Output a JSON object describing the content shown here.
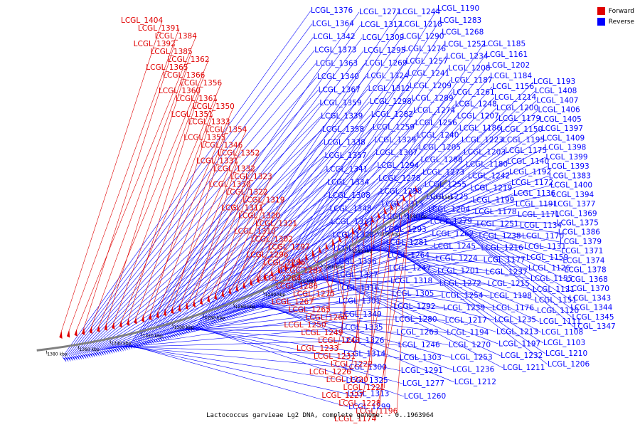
{
  "colors": {
    "forward": "#e00000",
    "reverse": "#0000ff",
    "backbone": "#808080"
  },
  "legend": [
    {
      "name": "Forward",
      "color": "#e00000"
    },
    {
      "name": "Reverse",
      "color": "#0000ff"
    }
  ],
  "caption": "Lactococcus garvieae Lg2 DNA, complete genome. - 0..1963964",
  "ticks": [
    "1380 kbp",
    "1360 kbp",
    "1340 kbp",
    "1320 kbp",
    "1300 kbp",
    "1280 kbp",
    "1260 kbp",
    "1240 kbp",
    "1220 kbp",
    "1200 kbp",
    "1180 kbp",
    "1160 kbp",
    "1140 kbp",
    "1120 kbp"
  ],
  "reverse_labels": [
    "LCGL_1376",
    "LCGL_1364",
    "LCGL_1342",
    "LCGL_1373",
    "LCGL_1363",
    "LCGL_1340",
    "LCGL_1367",
    "LCGL_1359",
    "LCGL_1339",
    "LCGL_1358",
    "LCGL_1338",
    "LCGL_1357",
    "LCGL_1341",
    "LCGL_1334",
    "LCGL_1308",
    "LCGL_1348",
    "LCGL_1337",
    "LCGL_1328",
    "LCGL_1304",
    "LCGL_1336",
    "LCGL_1327",
    "LCGL_1316",
    "LCGL_1301",
    "LCGL_1349",
    "LCGL_1335",
    "LCGL_1326",
    "LCGL_1314",
    "LCGL_1300",
    "LCGL_1325",
    "LCGL_1313",
    "LCGL_1299",
    "LCGL_1271",
    "LCGL_1317",
    "LCGL_1309",
    "LCGL_1295",
    "LCGL_1269",
    "LCGL_1324",
    "LCGL_1312",
    "LCGL_1298",
    "LCGL_1282",
    "LCGL_1259",
    "LCGL_1329",
    "LCGL_1307",
    "LCGL_1294",
    "LCGL_1278",
    "LCGL_1258",
    "LCGL_1315",
    "LCGL_1306",
    "LCGL_1293",
    "LCGL_1281",
    "LCGL_1264",
    "LCGL_1247",
    "LCGL_1318",
    "LCGL_1305",
    "LCGL_1292",
    "LCGL_1280",
    "LCGL_1263",
    "LCGL_1246",
    "LCGL_1303",
    "LCGL_1291",
    "LCGL_1277",
    "LCGL_1260",
    "LCGL_1244",
    "LCGL_1218",
    "LCGL_1290",
    "LCGL_1276",
    "LCGL_1257",
    "LCGL_1241",
    "LCGL_1209",
    "LCGL_1289",
    "LCGL_1274",
    "LCGL_1256",
    "LCGL_1240",
    "LCGL_1205",
    "LCGL_1288",
    "LCGL_1273",
    "LCGL_1255",
    "LCGL_1225",
    "LCGL_1204",
    "LCGL_1279",
    "LCGL_1262",
    "LCGL_1245",
    "LCGL_1224",
    "LCGL_1201",
    "LCGL_1272",
    "LCGL_1254",
    "LCGL_1239",
    "LCGL_1217",
    "LCGL_1194",
    "LCGL_1270",
    "LCGL_1253",
    "LCGL_1236",
    "LCGL_1212",
    "LCGL_1190",
    "LCGL_1283",
    "LCGL_1268",
    "LCGL_1252",
    "LCGL_1234",
    "LCGL_1208",
    "LCGL_1187",
    "LCGL_1261",
    "LCGL_1248",
    "LCGL_1207",
    "LCGL_1186",
    "LCGL_1223",
    "LCGL_1203",
    "LCGL_1180",
    "LCGL_1242",
    "LCGL_1219",
    "LCGL_1199",
    "LCGL_1178",
    "LCGL_1251",
    "LCGL_1238",
    "LCGL_1216",
    "LCGL_1177",
    "LCGL_1237",
    "LCGL_1215",
    "LCGL_1198",
    "LCGL_1176",
    "LCGL_1235",
    "LCGL_1213",
    "LCGL_1197",
    "LCGL_1232",
    "LCGL_1211",
    "LCGL_1185",
    "LCGL_1161",
    "LCGL_1202",
    "LCGL_1184",
    "LCGL_1156",
    "LCGL_1214",
    "LCGL_1200",
    "LCGL_1179",
    "LCGL_1150",
    "LCGL_1195",
    "LCGL_1175",
    "LCGL_1140",
    "LCGL_1192",
    "LCGL_1172",
    "LCGL_1136",
    "LCGL_1191",
    "LCGL_1171",
    "LCGL_1134",
    "LCGL_1170",
    "LCGL_1131",
    "LCGL_1159",
    "LCGL_1126",
    "LCGL_1155",
    "LCGL_1121",
    "LCGL_1151",
    "LCGL_1120",
    "LCGL_1111",
    "LCGL_1108",
    "LCGL_1103",
    "LCGL_1210",
    "LCGL_1206",
    "LCGL_1193",
    "LCGL_1408",
    "LCGL_1407",
    "LCGL_1406",
    "LCGL_1405",
    "LCGL_1397",
    "LCGL_1409",
    "LCGL_1398",
    "LCGL_1399",
    "LCGL_1393",
    "LCGL_1383",
    "LCGL_1400",
    "LCGL_1394",
    "LCGL_1377",
    "LCGL_1369",
    "LCGL_1375",
    "LCGL_1386",
    "LCGL_1379",
    "LCGL_1371",
    "LCGL_1374",
    "LCGL_1378",
    "LCGL_1368",
    "LCGL_1370",
    "LCGL_1343",
    "LCGL_1344",
    "LCGL_1345",
    "LCGL_1347"
  ],
  "forward_labels": [
    "LCGL_1404",
    "LCGL_1391",
    "LCGL_1384",
    "LCGL_1392",
    "LCGL_1385",
    "LCGL_1362",
    "LCGL_1365",
    "LCGL_1366",
    "LCGL_1356",
    "LCGL_1360",
    "LCGL_1361",
    "LCGL_1350",
    "LCGL_1351",
    "LCGL_1333",
    "LCGL_1354",
    "LCGL_1355",
    "LCGL_1346",
    "LCGL_1352",
    "LCGL_1331",
    "LCGL_1332",
    "LCGL_1323",
    "LCGL_1330",
    "LCGL_1322",
    "LCGL_1319",
    "LCGL_1311",
    "LCGL_1320",
    "LCGL_1321",
    "LCGL_1310",
    "LCGL_1302",
    "LCGL_1297",
    "LCGL_1296",
    "LCGL_1286",
    "LCGL_1287",
    "LCGL_1284",
    "LCGL_1285",
    "LCGL_1275",
    "LCGL_1267",
    "LCGL_1265",
    "LCGL_1266",
    "LCGL_1250",
    "LCGL_1249",
    "LCGL_1243",
    "LCGL_1233",
    "LCGL_1231",
    "LCGL_1222",
    "LCGL_1226",
    "LCGL_1220",
    "LCGL_1221",
    "LCGL_1227",
    "LCGL_1228",
    "LCGL_1196",
    "LCGL_1174"
  ]
}
